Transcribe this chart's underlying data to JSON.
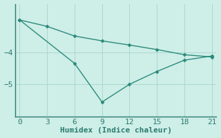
{
  "line1_x": [
    0,
    3,
    6,
    9,
    12,
    15,
    18,
    21
  ],
  "line1_y": [
    -3.0,
    -3.2,
    -3.5,
    -3.65,
    -3.78,
    -3.92,
    -4.08,
    -4.15
  ],
  "line2_x": [
    0,
    6,
    9,
    12,
    15,
    18,
    21
  ],
  "line2_y": [
    -3.0,
    -4.35,
    -5.55,
    -5.0,
    -4.6,
    -4.25,
    -4.12
  ],
  "line_color": "#2a8a7a",
  "background_color": "#ceeee8",
  "axis_color": "#2a7a6e",
  "xlabel": "Humidex (Indice chaleur)",
  "xlim": [
    -0.5,
    21.5
  ],
  "ylim": [
    -6.0,
    -2.5
  ],
  "yticks": [
    -5,
    -4
  ],
  "xticks": [
    0,
    3,
    6,
    9,
    12,
    15,
    18,
    21
  ],
  "grid_color": "#aad8d0",
  "marker": "D",
  "markersize": 2.5,
  "linewidth": 1.0,
  "tick_fontsize": 8,
  "label_fontsize": 8
}
